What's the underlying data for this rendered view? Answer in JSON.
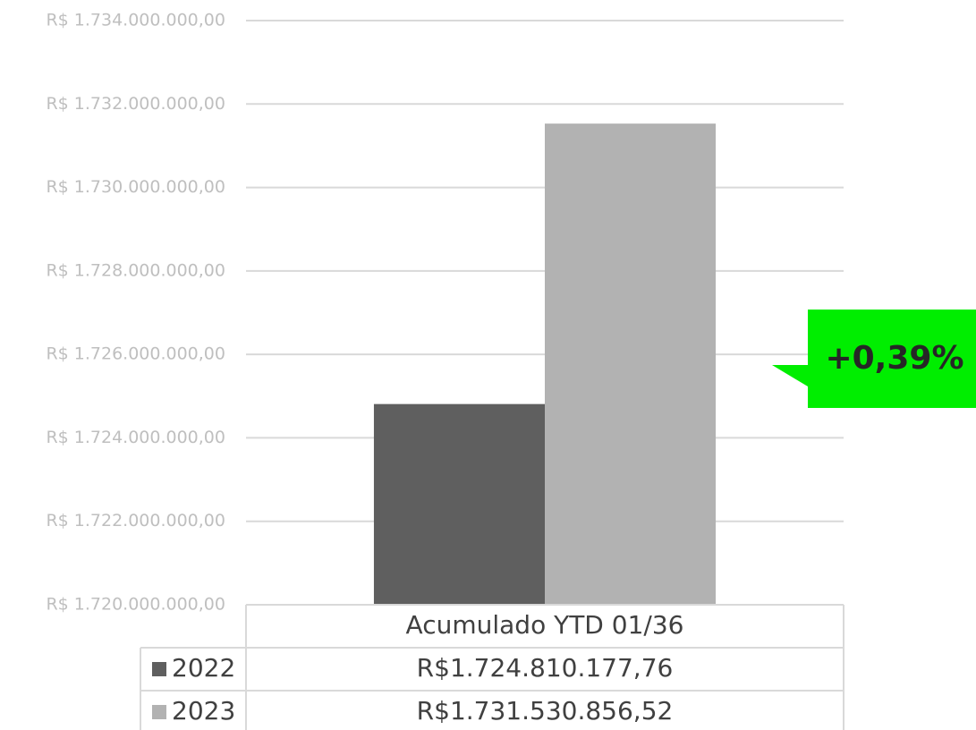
{
  "chart_data": {
    "type": "bar",
    "categories": [
      "Acumulado YTD 01/36"
    ],
    "series": [
      {
        "name": "2022",
        "color": "#5f5f5f",
        "values": [
          1724810177.76
        ],
        "value_labels": [
          "R$1.724.810.177,76"
        ]
      },
      {
        "name": "2023",
        "color": "#b2b2b2",
        "values": [
          1731530856.52
        ],
        "value_labels": [
          "R$1.731.530.856,52"
        ]
      }
    ],
    "ylim": [
      1720000000,
      1734000000
    ],
    "yticks": [
      {
        "value": 1720000000,
        "label": "R$ 1.720.000.000,00"
      },
      {
        "value": 1722000000,
        "label": "R$ 1.722.000.000,00"
      },
      {
        "value": 1724000000,
        "label": "R$ 1.724.000.000,00"
      },
      {
        "value": 1726000000,
        "label": "R$ 1.726.000.000,00"
      },
      {
        "value": 1728000000,
        "label": "R$ 1.728.000.000,00"
      },
      {
        "value": 1730000000,
        "label": "R$ 1.730.000.000,00"
      },
      {
        "value": 1732000000,
        "label": "R$ 1.732.000.000,00"
      },
      {
        "value": 1734000000,
        "label": "R$ 1.734.000.000,00"
      }
    ],
    "grid": true,
    "annotation": "+0,39%",
    "annotation_color": "#00ee00"
  }
}
